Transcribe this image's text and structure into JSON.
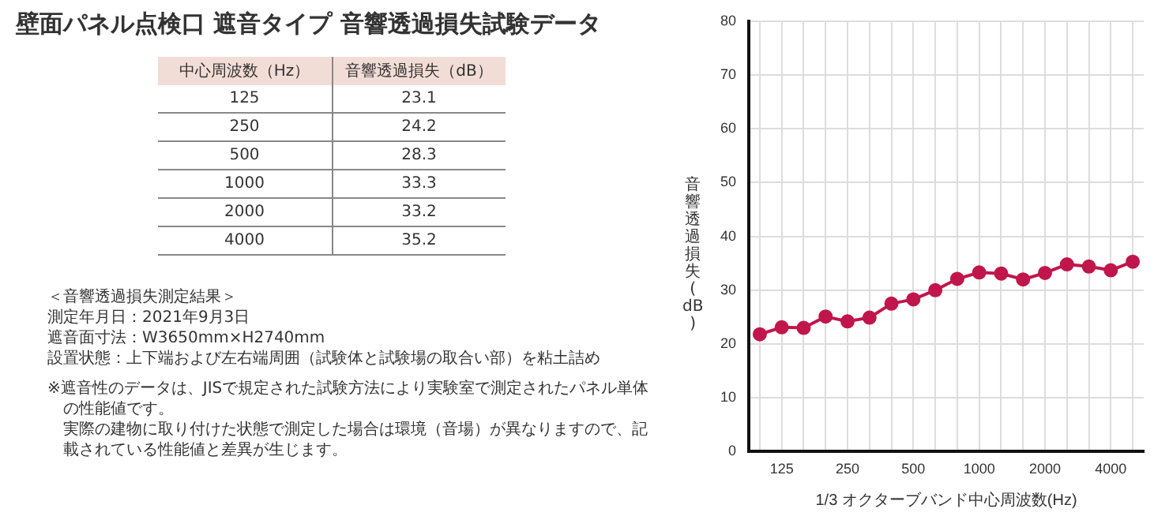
{
  "chart_data": [
    {
      "type": "other",
      "title": "壁面パネル点検口 遮音タイプ 音響透過損失試験データ",
      "xlabel": "中心周波数（Hz）",
      "ylabel": "音響透過損失（dB）",
      "categories": [
        "125",
        "250",
        "500",
        "1000",
        "2000",
        "4000"
      ],
      "values": [
        23.1,
        24.2,
        28.3,
        33.3,
        33.2,
        35.2
      ],
      "data_labels": true,
      "annotations": [
        "＜音響透過損失測定結果＞",
        "測定年月日：2021年9月3日",
        "遮音面寸法：W3650mm×H2740mm",
        "設置状態：上下端および左右端周囲（試験体と試験場の取合い部）を粘土詰め",
        "※遮音性のデータは、JISで規定された試験方法により実験室で測定されたパネル単体の性能値です。",
        "実際の建物に取り付けた状態で測定した場合は環境（音場）が異なりますので、記載されている性能値と差異が生じます。"
      ]
    },
    {
      "type": "line",
      "xlabel": "1/3 オクターブバンド中心周波数(Hz)",
      "ylabel": "音響透過損失(dB)",
      "categories": [
        null,
        "125",
        null,
        null,
        "250",
        null,
        null,
        "500",
        null,
        null,
        "1000",
        null,
        null,
        "2000",
        null,
        null,
        "4000",
        null
      ],
      "series": [
        {
          "color": "#c0164c",
          "values": [
            21.8,
            23.1,
            23.0,
            25.1,
            24.2,
            24.9,
            27.5,
            28.3,
            30.0,
            32.1,
            33.3,
            33.1,
            32.0,
            33.2,
            34.8,
            34.4,
            33.7,
            35.3
          ]
        }
      ],
      "ylim": [
        0,
        80
      ],
      "yticks": [
        0,
        10,
        20,
        30,
        40,
        50,
        60,
        70,
        80
      ],
      "grid": true,
      "legend": false,
      "marker": "circle",
      "line_style": "solid"
    }
  ]
}
